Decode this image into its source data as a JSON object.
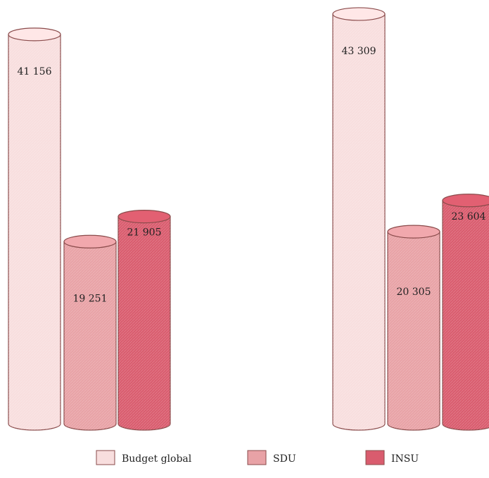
{
  "chart_data": {
    "type": "bar",
    "style": "3d-cylinder",
    "groups": [
      "",
      ""
    ],
    "series": [
      {
        "name": "Budget global",
        "values": [
          41156,
          43309
        ],
        "labels": [
          "41 156",
          "43 309"
        ],
        "color": "#f8dede"
      },
      {
        "name": "SDU",
        "values": [
          19251,
          20305
        ],
        "labels": [
          "19 251",
          "20 305"
        ],
        "color": "#e8a2a6"
      },
      {
        "name": "INSU",
        "values": [
          21905,
          23604
        ],
        "labels": [
          "21 905",
          "23 604"
        ],
        "color": "#d95c6e"
      }
    ],
    "title": "",
    "xlabel": "",
    "ylabel": "",
    "grid": false,
    "legend_position": "bottom"
  }
}
